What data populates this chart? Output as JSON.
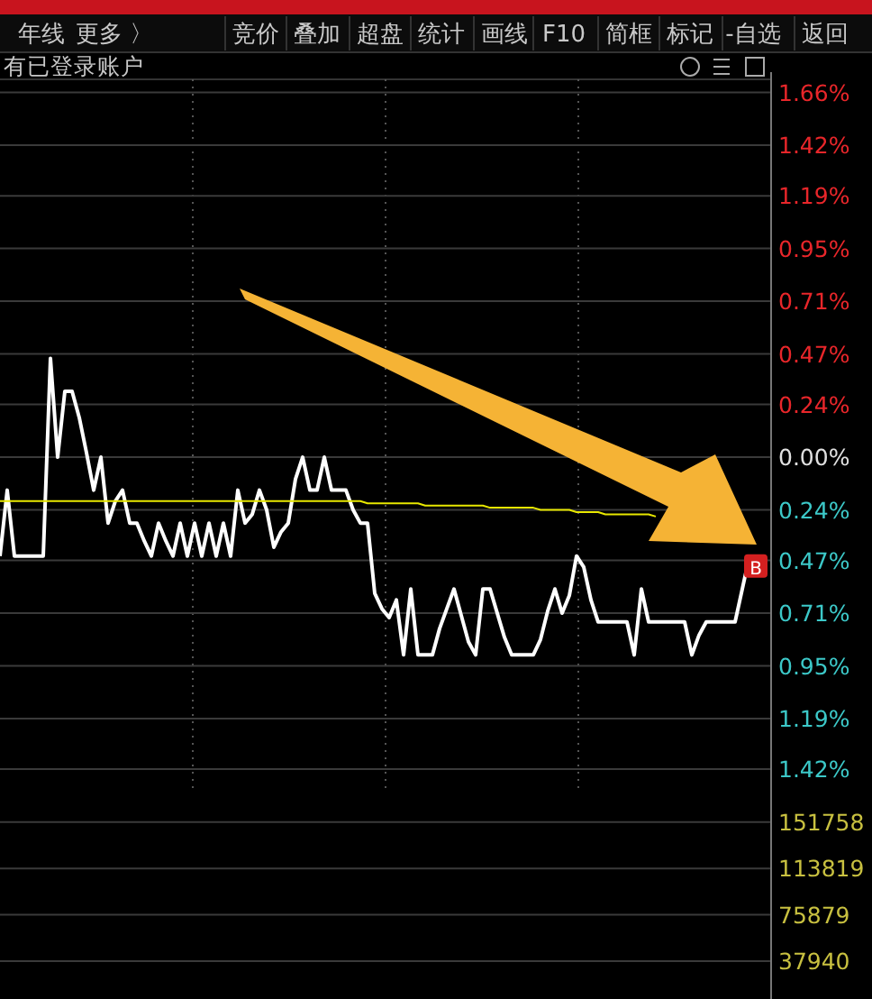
{
  "chart_data": [
    {
      "type": "line",
      "categories": [
        null,
        null,
        null,
        null,
        null,
        null,
        null,
        null,
        null,
        null,
        null,
        null,
        null,
        null,
        null,
        null,
        null,
        null,
        null,
        null,
        null,
        null,
        null,
        null,
        null,
        null,
        null,
        null,
        null,
        null,
        null,
        null,
        null,
        null,
        null,
        null,
        null,
        null,
        null,
        null,
        null,
        null,
        null,
        null,
        null,
        null,
        null,
        null,
        null,
        null,
        null,
        null,
        null,
        null,
        null,
        null,
        null,
        null,
        null,
        null,
        null,
        null,
        null,
        null,
        null,
        null,
        null,
        null,
        null,
        null,
        null,
        null,
        null,
        null,
        null,
        null,
        null,
        null,
        null,
        null,
        null,
        null,
        null,
        null,
        null,
        null,
        null,
        null,
        null,
        null,
        null,
        null,
        null,
        null,
        null,
        null,
        null,
        null,
        null,
        null,
        null,
        null,
        null,
        null,
        null
      ],
      "ylim": [
        -2.45,
        1.72
      ],
      "y2lim": [
        9900,
        759800
      ],
      "y2ticks": [
        37940,
        75879,
        113819,
        151758
      ],
      "yticks": [
        {
          "value": 1.66,
          "label": "1.66%"
        },
        {
          "value": 1.42,
          "label": "1.42%"
        },
        {
          "value": 1.19,
          "label": "1.19%"
        },
        {
          "value": 0.95,
          "label": "0.95%"
        },
        {
          "value": 0.71,
          "label": "0.71%"
        },
        {
          "value": 0.47,
          "label": "0.47%"
        },
        {
          "value": 0.24,
          "label": "0.24%"
        },
        {
          "value": 0,
          "label": "0.00%"
        },
        {
          "value": -0.24,
          "label": "0.24%"
        },
        {
          "value": -0.47,
          "label": "0.47%"
        },
        {
          "value": -0.71,
          "label": "0.71%"
        },
        {
          "value": -0.95,
          "label": "0.95%"
        },
        {
          "value": -1.19,
          "label": "1.19%"
        },
        {
          "value": -1.42,
          "label": "1.42%"
        }
      ],
      "grid": true,
      "tick_labels": "y",
      "series": [
        {
          "color": "#ffffff",
          "values": [
            -0.45,
            -0.15,
            -0.45,
            -0.45,
            -0.45,
            -0.45,
            -0.45,
            0.45,
            0,
            0.3,
            0.3,
            0.18,
            0.02,
            -0.15,
            0,
            -0.3,
            -0.2,
            -0.15,
            -0.3,
            -0.3,
            -0.38,
            -0.45,
            -0.3,
            -0.38,
            -0.45,
            -0.3,
            -0.45,
            -0.3,
            -0.45,
            -0.3,
            -0.45,
            -0.3,
            -0.45,
            -0.15,
            -0.3,
            -0.26,
            -0.15,
            -0.24,
            -0.41,
            -0.34,
            -0.3,
            -0.1,
            0,
            -0.15,
            -0.15,
            0,
            -0.15,
            -0.15,
            -0.15,
            -0.24,
            -0.3,
            -0.3,
            -0.62,
            -0.69,
            -0.73,
            -0.65,
            -0.9,
            -0.6,
            -0.9,
            -0.9,
            -0.9,
            -0.78,
            -0.69,
            -0.6,
            -0.72,
            -0.84,
            -0.9,
            -0.6,
            -0.6,
            -0.71,
            -0.82,
            -0.9,
            -0.9,
            -0.9,
            -0.9,
            -0.83,
            -0.7,
            -0.6,
            -0.71,
            -0.63,
            -0.45,
            -0.5,
            -0.65,
            -0.75,
            -0.75,
            -0.75,
            -0.75,
            -0.75,
            -0.9,
            -0.6,
            -0.75,
            -0.75,
            -0.75,
            -0.75,
            -0.75,
            -0.75,
            -0.9,
            -0.81,
            -0.75,
            -0.75,
            -0.75,
            -0.75,
            -0.75,
            -0.6,
            -0.45
          ]
        },
        {
          "color": "#e8e800",
          "values": [
            -0.2,
            -0.2,
            -0.2,
            -0.2,
            -0.2,
            -0.2,
            -0.2,
            -0.2,
            -0.2,
            -0.2,
            -0.2,
            -0.2,
            -0.2,
            -0.2,
            -0.2,
            -0.2,
            -0.2,
            -0.2,
            -0.2,
            -0.2,
            -0.2,
            -0.2,
            -0.2,
            -0.2,
            -0.2,
            -0.2,
            -0.2,
            -0.2,
            -0.2,
            -0.2,
            -0.2,
            -0.2,
            -0.2,
            -0.2,
            -0.2,
            -0.2,
            -0.2,
            -0.2,
            -0.2,
            -0.2,
            -0.2,
            -0.2,
            -0.2,
            -0.2,
            -0.2,
            -0.2,
            -0.2,
            -0.2,
            -0.2,
            -0.2,
            -0.2,
            -0.21,
            -0.21,
            -0.21,
            -0.21,
            -0.21,
            -0.21,
            -0.21,
            -0.21,
            -0.22,
            -0.22,
            -0.22,
            -0.22,
            -0.22,
            -0.22,
            -0.22,
            -0.22,
            -0.22,
            -0.23,
            -0.23,
            -0.23,
            -0.23,
            -0.23,
            -0.23,
            -0.23,
            -0.24,
            -0.24,
            -0.24,
            -0.24,
            -0.24,
            -0.25,
            -0.25,
            -0.25,
            -0.25,
            -0.26,
            -0.26,
            -0.26,
            -0.26,
            -0.26,
            -0.26,
            -0.26,
            -0.27,
            null,
            null,
            null,
            null,
            null,
            null,
            null,
            null,
            null,
            null,
            null,
            null,
            null
          ]
        }
      ],
      "annotations": [
        "年线",
        "更多 〉",
        "竞价",
        "叠加",
        "超盘",
        "统计",
        "画线",
        "F10",
        "简框",
        "标记",
        "-自选",
        "返回",
        "有已登录账户",
        {
          "text": "B",
          "y": -0.45
        }
      ]
    }
  ]
}
